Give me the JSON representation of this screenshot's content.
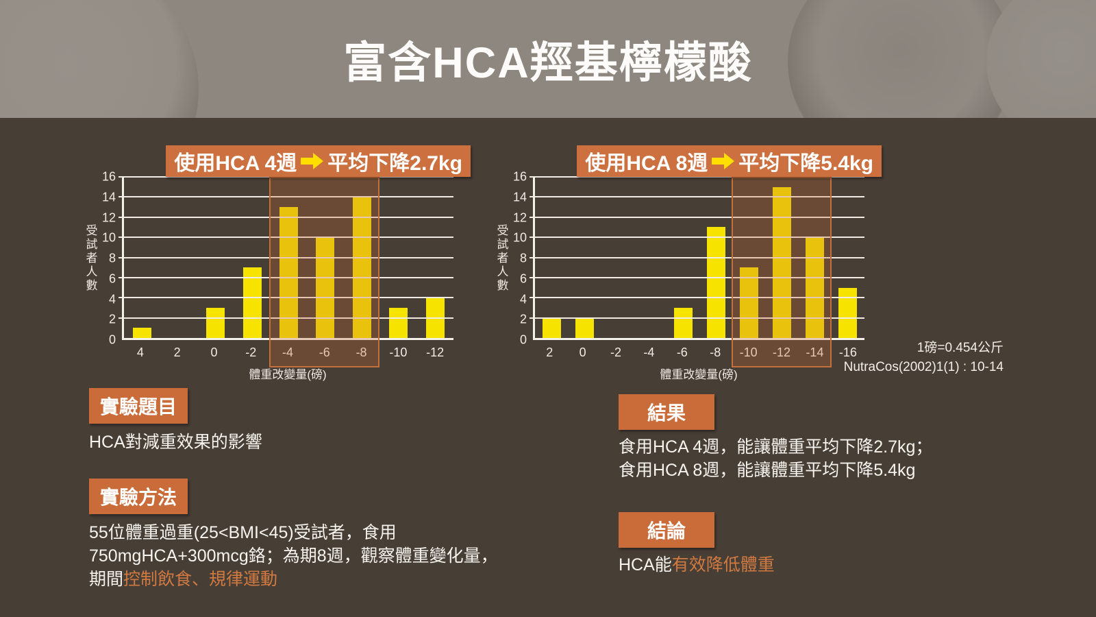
{
  "page": {
    "title": "富含HCA羥基檸檬酸"
  },
  "colors": {
    "background": "#473e36",
    "header_gray": "#8d8780",
    "accent_orange": "#c96c3a",
    "bar_yellow": "#f6e400",
    "arrow_yellow": "#ffdf00",
    "highlight_text_orange": "#d07a42",
    "gridline": "#f0ebe4"
  },
  "chart_data": [
    {
      "type": "bar",
      "title_prefix": "使用HCA 4週",
      "arrow_icon": "right-arrow",
      "title_suffix": "平均下降2.7kg",
      "categories": [
        "4",
        "2",
        "0",
        "-2",
        "-4",
        "-6",
        "-8",
        "-10",
        "-12"
      ],
      "values": [
        1,
        0,
        3,
        7,
        13,
        10,
        14,
        3,
        4
      ],
      "highlight_categories": [
        "-4",
        "-6",
        "-8"
      ],
      "xlabel": "體重改變量(磅)",
      "ylabel": "受試者人數",
      "ylim": [
        0,
        16
      ],
      "ytick_step": 2,
      "grid": true,
      "bar_color": "#f6e400",
      "highlight_border_color": "#c4703c"
    },
    {
      "type": "bar",
      "title_prefix": "使用HCA 8週",
      "arrow_icon": "right-arrow",
      "title_suffix": "平均下降5.4kg",
      "categories": [
        "2",
        "0",
        "-2",
        "-4",
        "-6",
        "-8",
        "-10",
        "-12",
        "-14",
        "-16"
      ],
      "values": [
        2,
        2,
        0,
        0,
        3,
        11,
        7,
        15,
        10,
        5
      ],
      "highlight_categories": [
        "-10",
        "-12",
        "-14"
      ],
      "xlabel": "體重改變量(磅)",
      "ylabel": "受試者人數",
      "ylim": [
        0,
        16
      ],
      "ytick_step": 2,
      "grid": true,
      "bar_color": "#f6e400",
      "highlight_border_color": "#c4703c"
    }
  ],
  "notes": {
    "conversion": "1磅=0.454公斤",
    "source": "NutraCos(2002)1(1) : 10-14"
  },
  "sections": {
    "experiment_title": {
      "badge": "實驗題目",
      "text": "HCA對減重效果的影響"
    },
    "method": {
      "badge": "實驗方法",
      "line1": "55位體重過重(25<BMI<45)受試者，食用",
      "line2": "750mgHCA+300mcg鉻；為期8週，觀察體重變化量，",
      "line3_prefix": "期間",
      "line3_highlight": "控制飲食、規律運動"
    },
    "results": {
      "badge": "結果",
      "line1": "食用HCA 4週，能讓體重平均下降2.7kg；",
      "line2": "食用HCA 8週，能讓體重平均下降5.4kg"
    },
    "conclusion": {
      "badge": "結論",
      "prefix": "HCA能",
      "highlight": "有效降低體重"
    }
  }
}
